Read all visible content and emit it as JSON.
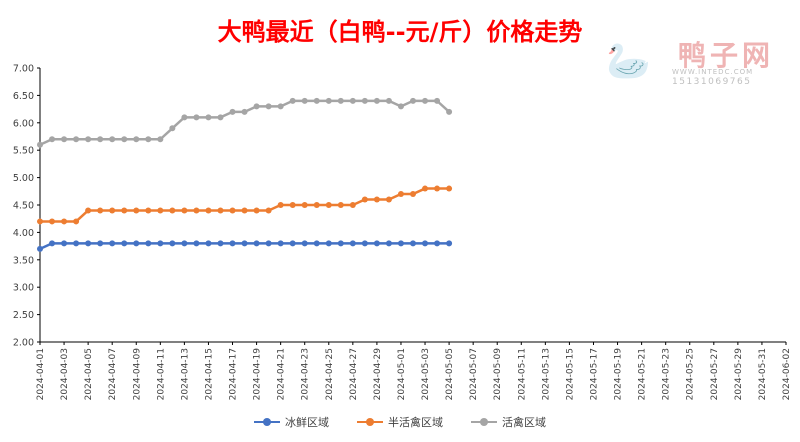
{
  "colors": {
    "title": "#ff0000",
    "ice_fresh": "#4472c4",
    "semi_live": "#ed7d31",
    "live": "#a5a5a5",
    "axis": "#000000",
    "tick_text": "#404040"
  },
  "watermark": {
    "name": "鸭子网",
    "url": "WWW.INTEDC.COM",
    "phone": "15131069765",
    "bird_icon": "duck-logo-icon"
  },
  "chart_data": {
    "type": "line",
    "title": "大鸭最近（白鸭--元/斤）价格走势",
    "xlabel": "",
    "ylabel": "",
    "ylim": [
      2.0,
      7.0
    ],
    "yticks": [
      "2.00",
      "2.50",
      "3.00",
      "3.50",
      "4.00",
      "4.50",
      "5.00",
      "5.50",
      "6.00",
      "6.50",
      "7.00"
    ],
    "x_range": [
      "2024-04-01",
      "2024-06-02"
    ],
    "x_tick_labels": [
      "2024-04-01",
      "2024-04-03",
      "2024-04-05",
      "2024-04-07",
      "2024-04-09",
      "2024-04-11",
      "2024-04-13",
      "2024-04-15",
      "2024-04-17",
      "2024-04-19",
      "2024-04-21",
      "2024-04-23",
      "2024-04-25",
      "2024-04-27",
      "2024-04-29",
      "2024-05-01",
      "2024-05-03",
      "2024-05-05",
      "2024-05-07",
      "2024-05-09",
      "2024-05-11",
      "2024-05-13",
      "2024-05-15",
      "2024-05-17",
      "2024-05-19",
      "2024-05-21",
      "2024-05-23",
      "2024-05-25",
      "2024-05-27",
      "2024-05-29",
      "2024-05-31",
      "2024-06-02"
    ],
    "x": [
      "2024-04-01",
      "2024-04-02",
      "2024-04-03",
      "2024-04-04",
      "2024-04-05",
      "2024-04-06",
      "2024-04-07",
      "2024-04-08",
      "2024-04-09",
      "2024-04-10",
      "2024-04-11",
      "2024-04-12",
      "2024-04-13",
      "2024-04-14",
      "2024-04-15",
      "2024-04-16",
      "2024-04-17",
      "2024-04-18",
      "2024-04-19",
      "2024-04-20",
      "2024-04-21",
      "2024-04-22",
      "2024-04-23",
      "2024-04-24",
      "2024-04-25",
      "2024-04-26",
      "2024-04-27",
      "2024-04-28",
      "2024-04-29",
      "2024-04-30",
      "2024-05-01",
      "2024-05-02",
      "2024-05-03",
      "2024-05-04",
      "2024-05-05"
    ],
    "series": [
      {
        "name": "冰鲜区域",
        "color": "#4472c4",
        "values": [
          3.7,
          3.8,
          3.8,
          3.8,
          3.8,
          3.8,
          3.8,
          3.8,
          3.8,
          3.8,
          3.8,
          3.8,
          3.8,
          3.8,
          3.8,
          3.8,
          3.8,
          3.8,
          3.8,
          3.8,
          3.8,
          3.8,
          3.8,
          3.8,
          3.8,
          3.8,
          3.8,
          3.8,
          3.8,
          3.8,
          3.8,
          3.8,
          3.8,
          3.8,
          3.8
        ]
      },
      {
        "name": "半活禽区域",
        "color": "#ed7d31",
        "values": [
          4.2,
          4.2,
          4.2,
          4.2,
          4.4,
          4.4,
          4.4,
          4.4,
          4.4,
          4.4,
          4.4,
          4.4,
          4.4,
          4.4,
          4.4,
          4.4,
          4.4,
          4.4,
          4.4,
          4.4,
          4.5,
          4.5,
          4.5,
          4.5,
          4.5,
          4.5,
          4.5,
          4.6,
          4.6,
          4.6,
          4.7,
          4.7,
          4.8,
          4.8,
          4.8
        ]
      },
      {
        "name": "活禽区域",
        "color": "#a5a5a5",
        "values": [
          5.6,
          5.7,
          5.7,
          5.7,
          5.7,
          5.7,
          5.7,
          5.7,
          5.7,
          5.7,
          5.7,
          5.9,
          6.1,
          6.1,
          6.1,
          6.1,
          6.2,
          6.2,
          6.3,
          6.3,
          6.3,
          6.4,
          6.4,
          6.4,
          6.4,
          6.4,
          6.4,
          6.4,
          6.4,
          6.4,
          6.3,
          6.4,
          6.4,
          6.4,
          6.2
        ]
      }
    ],
    "grid": false,
    "legend_position": "bottom"
  }
}
